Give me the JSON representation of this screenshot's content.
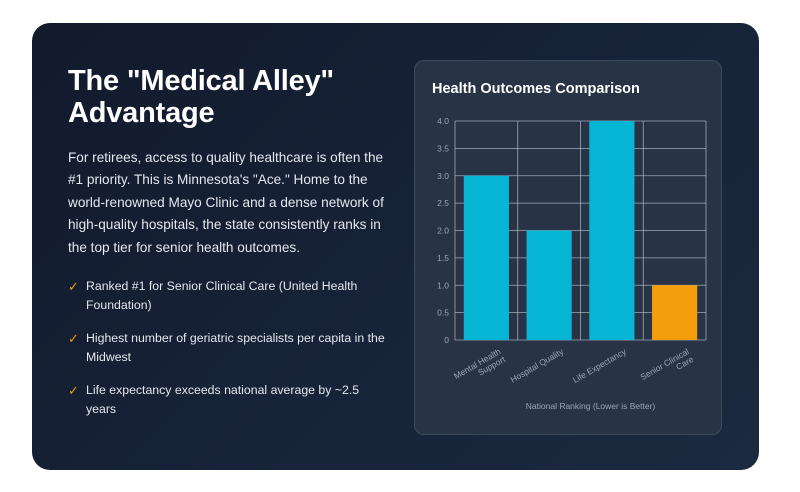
{
  "content": {
    "title_line1": "The \"Medical Alley\"",
    "title_line2": "Advantage",
    "description": "For retirees, access to quality healthcare is often the #1 priority. This is Minnesota's \"Ace.\" Home to the world-renowned Mayo Clinic and a dense network of high-quality hospitals, the state consistently ranks in the top tier for senior health outcomes.",
    "bullet_glyph": "✓",
    "bullets": [
      "Ranked #1 for Senior Clinical Care (United Health Foundation)",
      "Highest number of geriatric specialists per capita in the Midwest",
      "Life expectancy exceeds national average by ~2.5 years"
    ]
  },
  "chart_data": {
    "type": "bar",
    "title": "Health Outcomes Comparison",
    "categories": [
      "Mental Health Support",
      "Hospital Quality",
      "Life Expectancy",
      "Senior Clinical Care"
    ],
    "category_label_lines": [
      [
        "Mental Health",
        "Support"
      ],
      [
        "Hospital Quality"
      ],
      [
        "Life Expectancy"
      ],
      [
        "Senior Clinical",
        "Care"
      ]
    ],
    "values": [
      3,
      2,
      4,
      1
    ],
    "bar_colors": [
      "#06b6d4",
      "#06b6d4",
      "#06b6d4",
      "#f59e0b"
    ],
    "xlabel": "National Ranking (Lower is Better)",
    "ylabel": "",
    "ylim": [
      0,
      4
    ],
    "yticks": [
      "0",
      "0.5",
      "1.0",
      "1.5",
      "2.0",
      "2.5",
      "3.0",
      "3.5",
      "4.0"
    ],
    "grid": true,
    "legend": "none"
  }
}
